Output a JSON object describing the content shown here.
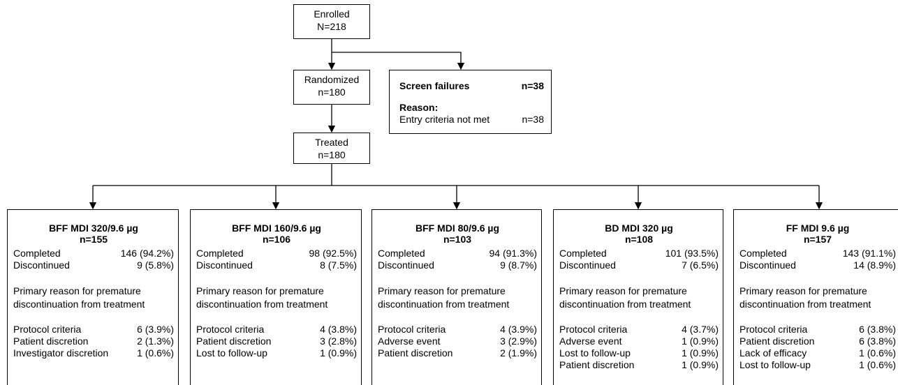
{
  "enrolled": {
    "label": "Enrolled",
    "count": "N=218"
  },
  "randomized": {
    "label": "Randomized",
    "count": "n=180"
  },
  "treated": {
    "label": "Treated",
    "count": "n=180"
  },
  "screen_failures": {
    "title": "Screen failures",
    "count": "n=38",
    "reason_heading": "Reason:",
    "reasons": [
      {
        "label": "Entry criteria not met",
        "value": "n=38"
      }
    ]
  },
  "arms": [
    {
      "name": "BFF MDI 320/9.6 µg",
      "n": "n=155",
      "completed": {
        "label": "Completed",
        "value": "146 (94.2%)"
      },
      "discontinued": {
        "label": "Discontinued",
        "value": "9 (5.8%)"
      },
      "reason_heading": [
        "Primary reason for premature",
        "discontinuation from treatment"
      ],
      "reasons": [
        {
          "label": "Protocol criteria",
          "value": "6 (3.9%)"
        },
        {
          "label": "Patient discretion",
          "value": "2 (1.3%)"
        },
        {
          "label": "Investigator discretion",
          "value": "1 (0.6%)"
        }
      ]
    },
    {
      "name": "BFF MDI 160/9.6 µg",
      "n": "n=106",
      "completed": {
        "label": "Completed",
        "value": "98 (92.5%)"
      },
      "discontinued": {
        "label": "Discontinued",
        "value": "8 (7.5%)"
      },
      "reason_heading": [
        "Primary reason for premature",
        "discontinuation from treatment"
      ],
      "reasons": [
        {
          "label": "Protocol criteria",
          "value": "4 (3.8%)"
        },
        {
          "label": "Patient discretion",
          "value": "3 (2.8%)"
        },
        {
          "label": "Lost to follow-up",
          "value": "1 (0.9%)"
        }
      ]
    },
    {
      "name": "BFF MDI 80/9.6 µg",
      "n": "n=103",
      "completed": {
        "label": "Completed",
        "value": "94 (91.3%)"
      },
      "discontinued": {
        "label": "Discontinued",
        "value": "9 (8.7%)"
      },
      "reason_heading": [
        "Primary reason for premature",
        "discontinuation from treatment"
      ],
      "reasons": [
        {
          "label": "Protocol criteria",
          "value": "4 (3.9%)"
        },
        {
          "label": "Adverse event",
          "value": "3 (2.9%)"
        },
        {
          "label": "Patient discretion",
          "value": "2 (1.9%)"
        }
      ]
    },
    {
      "name": "BD MDI 320 µg",
      "n": "n=108",
      "completed": {
        "label": "Completed",
        "value": "101 (93.5%)"
      },
      "discontinued": {
        "label": "Discontinued",
        "value": "7 (6.5%)"
      },
      "reason_heading": [
        "Primary reason for premature",
        "discontinuation from treatment"
      ],
      "reasons": [
        {
          "label": "Protocol criteria",
          "value": "4 (3.7%)"
        },
        {
          "label": "Adverse event",
          "value": "1 (0.9%)"
        },
        {
          "label": "Lost to follow-up",
          "value": "1 (0.9%)"
        },
        {
          "label": "Patient discretion",
          "value": "1 (0.9%)"
        }
      ]
    },
    {
      "name": "FF MDI 9.6 µg",
      "n": "n=157",
      "completed": {
        "label": "Completed",
        "value": "143 (91.1%)"
      },
      "discontinued": {
        "label": "Discontinued",
        "value": "14 (8.9%)"
      },
      "reason_heading": [
        "Primary reason for premature",
        "discontinuation from treatment"
      ],
      "reasons": [
        {
          "label": "Protocol criteria",
          "value": "6 (3.8%)"
        },
        {
          "label": "Patient discretion",
          "value": "6 (3.8%)"
        },
        {
          "label": "Lack of efficacy",
          "value": "1 (0.6%)"
        },
        {
          "label": "Lost to follow-up",
          "value": "1 (0.6%)"
        }
      ]
    }
  ]
}
